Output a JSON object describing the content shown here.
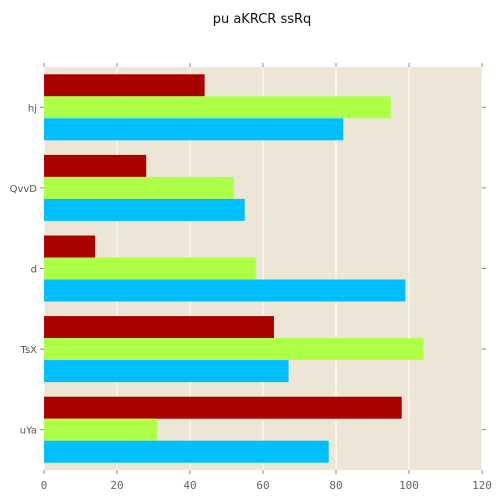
{
  "chart_data": {
    "type": "bar",
    "orientation": "horizontal",
    "title": "pu aKRCR  ssRq",
    "xlabel": "",
    "ylabel": "",
    "categories": [
      "hj",
      "QvvD",
      "d",
      "TsX",
      "uYa"
    ],
    "series": [
      {
        "color": "#aa0000",
        "values": [
          44,
          28,
          14,
          63,
          98
        ]
      },
      {
        "color": "#adff48",
        "values": [
          95,
          52,
          58,
          104,
          31
        ]
      },
      {
        "color": "#00bfff",
        "values": [
          82,
          55,
          99,
          67,
          78
        ]
      }
    ],
    "xlim": [
      0,
      120
    ],
    "xticks": [
      0,
      20,
      40,
      60,
      80,
      100,
      120
    ],
    "grid": true,
    "background": "#ede6d6",
    "gridColor": "#ffffff"
  }
}
